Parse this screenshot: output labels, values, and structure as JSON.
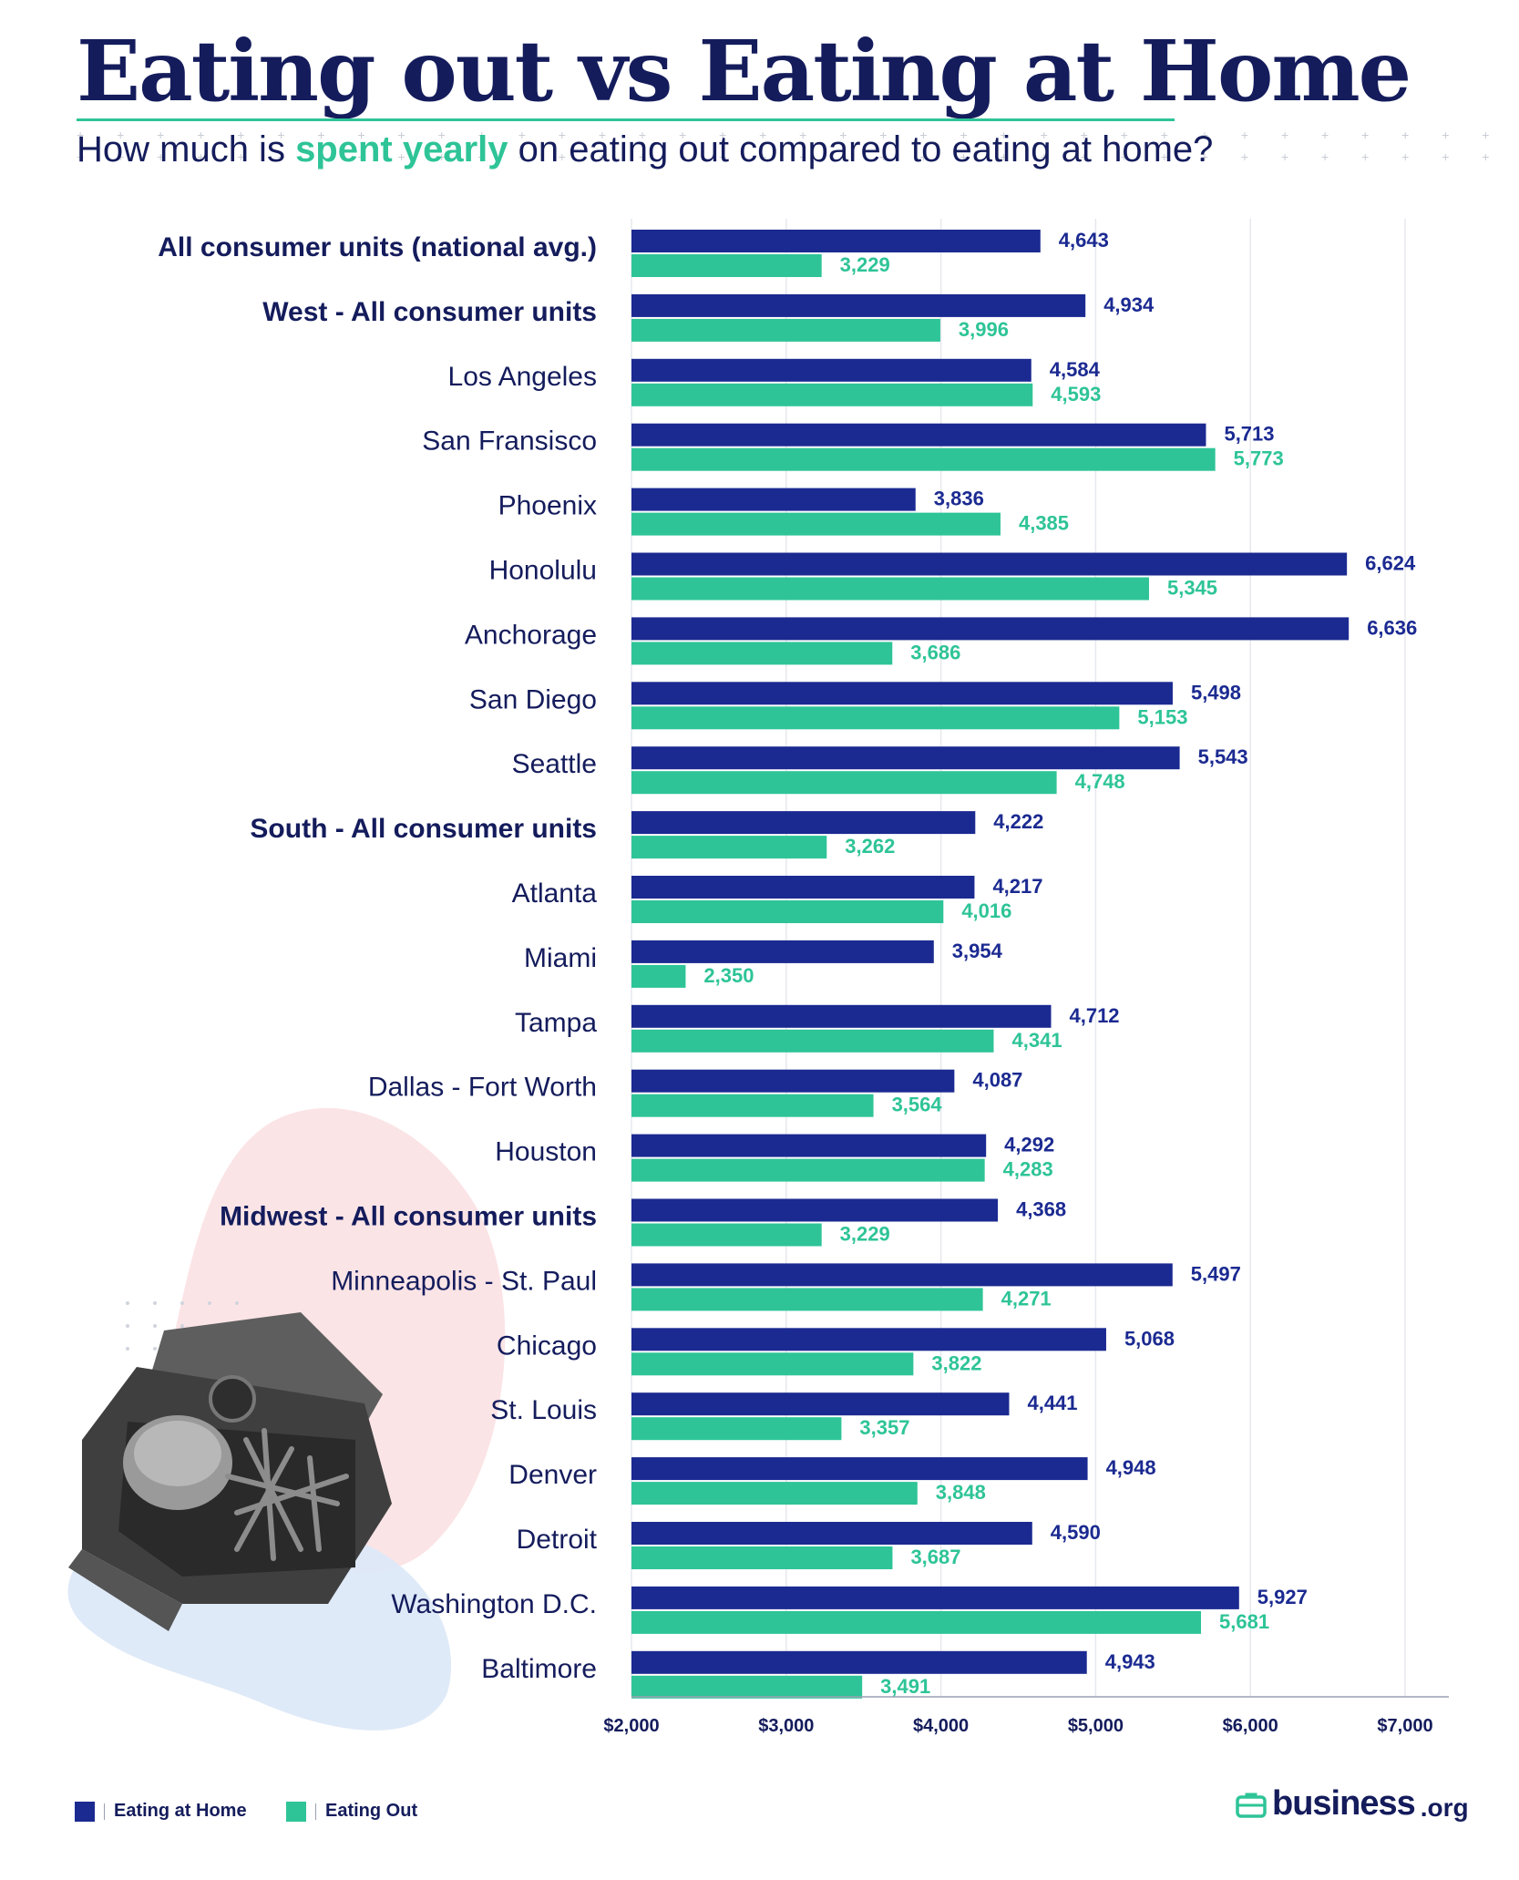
{
  "header": {
    "title": "Eating out vs Eating at Home",
    "subtitle_before": "How much is ",
    "subtitle_highlight": "spent yearly",
    "subtitle_after": " on eating out compared to eating at home?"
  },
  "legend": {
    "home_label": "Eating at Home",
    "out_label": "Eating Out"
  },
  "brand": {
    "name": "business",
    "tld": ".org",
    "icon": "briefcase-icon"
  },
  "colors": {
    "home": "#1b2a91",
    "out": "#2ec497",
    "text": "#141c5c",
    "grid": "#e6e8ee"
  },
  "chart_data": {
    "type": "bar",
    "orientation": "horizontal",
    "title": "Eating out vs Eating at Home",
    "xlim": [
      2000,
      7000
    ],
    "x_ticks": [
      2000,
      3000,
      4000,
      5000,
      6000,
      7000
    ],
    "x_tick_labels": [
      "$2,000",
      "$3,000",
      "$4,000",
      "$5,000",
      "$6,000",
      "$7,000"
    ],
    "categories": [
      "All consumer units (national avg.)",
      "West - All consumer units",
      "Los Angeles",
      "San Fransisco",
      "Phoenix",
      "Honolulu",
      "Anchorage",
      "San Diego",
      "Seattle",
      "South - All consumer units",
      "Atlanta",
      "Miami",
      "Tampa",
      "Dallas - Fort Worth",
      "Houston",
      "Midwest - All consumer units",
      "Minneapolis - St. Paul",
      "Chicago",
      "St. Louis",
      "Denver",
      "Detroit",
      "Washington D.C.",
      "Baltimore"
    ],
    "bold_categories": [
      "All consumer units (national avg.)",
      "West - All consumer units",
      "South - All consumer units",
      "Midwest - All consumer units"
    ],
    "series": [
      {
        "name": "Eating at Home",
        "values": [
          4643,
          4934,
          4584,
          5713,
          3836,
          6624,
          6636,
          5498,
          5543,
          4222,
          4217,
          3954,
          4712,
          4087,
          4292,
          4368,
          5497,
          5068,
          4441,
          4948,
          4590,
          5927,
          4943
        ],
        "labels": [
          "4,643",
          "4,934",
          "4,584",
          "5,713",
          "3,836",
          "6,624",
          "6,636",
          "5,498",
          "5,543",
          "4,222",
          "4,217",
          "3,954",
          "4,712",
          "4,087",
          "4,292",
          "4,368",
          "5,497",
          "5,068",
          "4,441",
          "4,948",
          "4,590",
          "5,927",
          "4,943"
        ]
      },
      {
        "name": "Eating Out",
        "values": [
          3229,
          3996,
          4593,
          5773,
          4385,
          5345,
          3686,
          5153,
          4748,
          3262,
          4016,
          2350,
          4341,
          3564,
          4283,
          3229,
          4271,
          3822,
          3357,
          3848,
          3687,
          5681,
          3491
        ],
        "labels": [
          "3,229",
          "3,996",
          "4,593",
          "5,773",
          "4,385",
          "5,345",
          "3,686",
          "5,153",
          "4,748",
          "3,262",
          "4,016",
          "2,350",
          "4,341",
          "3,564",
          "4,283",
          "3,229",
          "4,271",
          "3,822",
          "3,357",
          "3,848",
          "3,687",
          "5,681",
          "3,491"
        ]
      }
    ]
  }
}
